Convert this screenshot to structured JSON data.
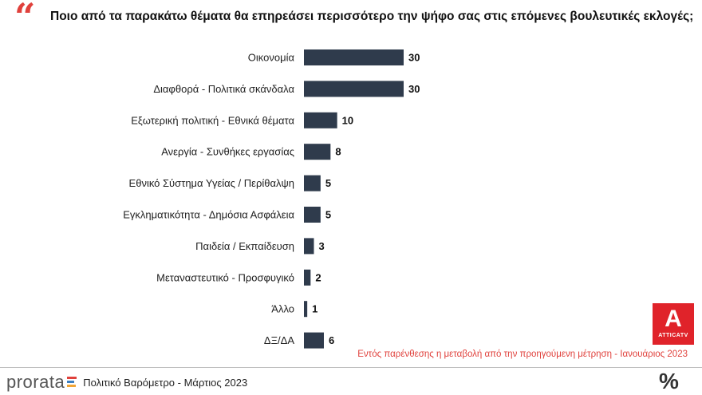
{
  "question": "Ποιο από τα παρακάτω θέματα θα επηρεάσει περισσότερο την ψήφο σας στις επόμενες βουλευτικές εκλογές;",
  "quote_symbol": "“",
  "chart_data": {
    "type": "bar",
    "orientation": "horizontal",
    "title": "Ποιο από τα παρακάτω θέματα θα επηρεάσει περισσότερο την ψήφο σας στις επόμενες βουλευτικές εκλογές;",
    "categories": [
      "Οικονομία",
      "Διαφθορά - Πολιτικά σκάνδαλα",
      "Εξωτερική πολιτική - Εθνικά θέματα",
      "Ανεργία - Συνθήκες εργασίας",
      "Εθνικό Σύστημα Υγείας / Περίθαλψη",
      "Εγκληματικότητα - Δημόσια Ασφάλεια",
      "Παιδεία / Εκπαίδευση",
      "Μεταναστευτικό - Προσφυγικό",
      "Άλλο",
      "ΔΞ/ΔΑ"
    ],
    "values": [
      30,
      30,
      10,
      8,
      5,
      5,
      3,
      2,
      1,
      6
    ],
    "xlim": [
      0,
      30
    ],
    "bar_color": "#2f3b4c",
    "grid": false
  },
  "note": "Εντός παρένθεσης η μεταβολή από την προηγούμενη μέτρηση - Ιανουάριος 2023",
  "logo": {
    "letter": "A",
    "text": "ATTICATV",
    "color": "#e0232a"
  },
  "footer": {
    "brand": "prorata",
    "text": "Πολιτικό Βαρόμετρο - Μάρτιος 2023",
    "percent_symbol": "%"
  },
  "accent_color": "#e0413c"
}
